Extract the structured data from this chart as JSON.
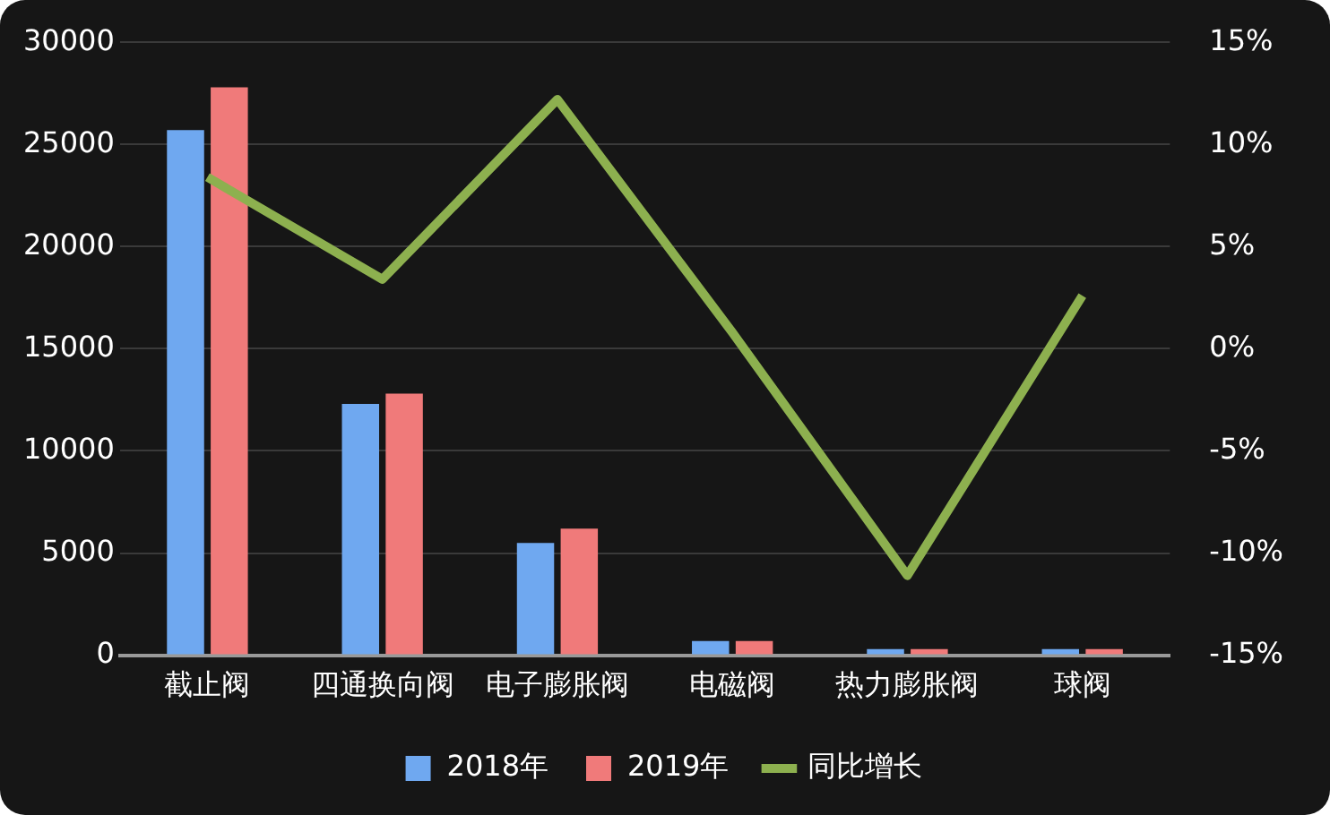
{
  "chart_data": {
    "type": "bar",
    "categories": [
      "截止阀",
      "四通换向阀",
      "电子膨胀阀",
      "电磁阀",
      "热力膨胀阀",
      "球阀"
    ],
    "series": [
      {
        "name": "2018年",
        "color": "#6fa8f0",
        "values": [
          25700,
          12300,
          5500,
          700,
          300,
          300
        ]
      },
      {
        "name": "2019年",
        "color": "#f07a7a",
        "values": [
          27800,
          12800,
          6200,
          700,
          300,
          300
        ]
      },
      {
        "name": "同比增长",
        "type": "line",
        "axis": "y2",
        "color": "#8db04f",
        "values": [
          8.4,
          3.4,
          12.2,
          0.8,
          -11.1,
          2.6
        ]
      }
    ],
    "ylim": [
      0,
      30000
    ],
    "yticks": [
      0,
      5000,
      10000,
      15000,
      20000,
      25000,
      30000
    ],
    "y2lim": [
      -15,
      15
    ],
    "y2ticks": [
      {
        "value": -15,
        "label": "-15%"
      },
      {
        "value": -10,
        "label": "-10%"
      },
      {
        "value": -5,
        "label": "-5%"
      },
      {
        "value": 0,
        "label": "0%"
      },
      {
        "value": 5,
        "label": "5%"
      },
      {
        "value": 10,
        "label": "10%"
      },
      {
        "value": 15,
        "label": "15%"
      }
    ],
    "grid": "y",
    "legend": "bottom",
    "marker": "none",
    "line_style": "solid"
  }
}
